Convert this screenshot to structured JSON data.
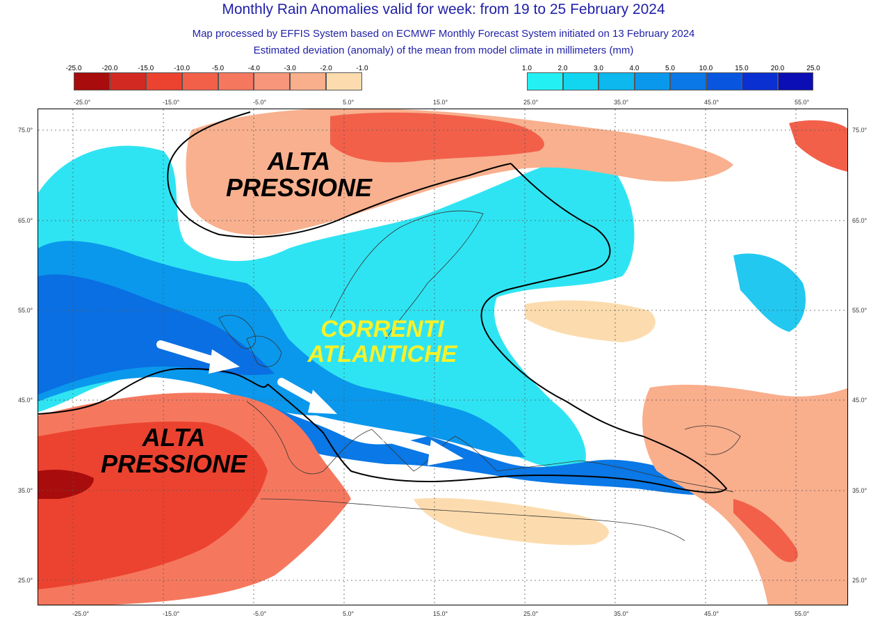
{
  "header": {
    "title": "Monthly Rain Anomalies valid for week: from 19 to 25 February 2024",
    "subtitle1": "Map processed by EFFIS System based on ECMWF Monthly Forecast System initiated on 13 February 2024",
    "subtitle2": "Estimated deviation (anomaly) of the mean from model climate in millimeters (mm)"
  },
  "legend": {
    "negative": {
      "labels": [
        "-25.0",
        "-20.0",
        "-15.0",
        "-10.0",
        "-5.0",
        "-4.0",
        "-3.0",
        "-2.0",
        "-1.0"
      ],
      "colors": [
        "#a80c0c",
        "#d22a22",
        "#ec4330",
        "#f2604a",
        "#f5785e",
        "#f7967a",
        "#f9ae8c",
        "#fcdcae"
      ]
    },
    "positive": {
      "labels": [
        "1.0",
        "2.0",
        "3.0",
        "4.0",
        "5.0",
        "10.0",
        "15.0",
        "20.0",
        "25.0"
      ],
      "colors": [
        "#22f0f2",
        "#12d6f0",
        "#0cb8ee",
        "#0a98ec",
        "#0a78e6",
        "#0856e0",
        "#0a30d2",
        "#0a0eb4"
      ]
    }
  },
  "axes": {
    "lon_labels": [
      "-25.0°",
      "-15.0°",
      "-5.0°",
      "5.0°",
      "15.0°",
      "25.0°",
      "35.0°",
      "45.0°",
      "55.0°"
    ],
    "lat_labels": [
      "75.0°",
      "65.0°",
      "55.0°",
      "45.0°",
      "35.0°",
      "25.0°"
    ]
  },
  "annotations": {
    "north_high": [
      "ALTA",
      "PRESSIONE"
    ],
    "south_high": [
      "ALTA",
      "PRESSIONE"
    ],
    "currents": [
      "CORRENTI",
      "ATLANTICHE"
    ]
  }
}
